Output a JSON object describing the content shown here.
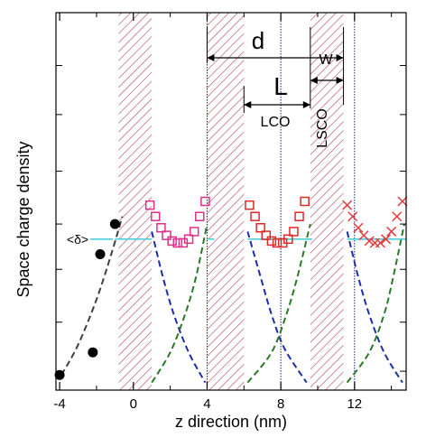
{
  "chart_data": {
    "type": "scatter",
    "title": "",
    "xlabel": "z direction (nm)",
    "ylabel": "Space charge density",
    "xlim": [
      -4.2,
      14.8
    ],
    "ylim": [
      0,
      1
    ],
    "xticks": [
      -4,
      0,
      4,
      8,
      12
    ],
    "x_minor_ticks": [
      -2,
      2,
      6,
      10,
      14
    ],
    "y_minor_ticks": [
      0.05,
      0.18,
      0.32,
      0.44,
      0.58,
      0.73,
      0.86,
      1.0
    ],
    "y_tick_labels_shown": false,
    "hatched_regions": [
      [
        -0.8,
        1.0
      ],
      [
        4.0,
        6.0
      ],
      [
        9.6,
        11.4
      ]
    ],
    "hatch_color": "#b5506a",
    "vertical_dotted_lines": [
      4.0,
      8.0,
      12.0
    ],
    "dotted_line_color": "#1a1a8c",
    "delta_level": 0.4,
    "series": [
      {
        "name": "",
        "marker": "filled-circle",
        "color": "#000000",
        "x": [
          -4.0,
          -2.2,
          -1.8,
          -1.0
        ],
        "y": [
          0.04,
          0.1,
          0.36,
          0.44
        ]
      },
      {
        "name": "",
        "marker": "open-square",
        "color": "#e0308a",
        "x": [
          0.9,
          1.2,
          1.5,
          1.8,
          2.1,
          2.4,
          2.7,
          3.0,
          3.3,
          3.6,
          3.9
        ],
        "y": [
          0.49,
          0.46,
          0.43,
          0.41,
          0.395,
          0.39,
          0.39,
          0.4,
          0.42,
          0.46,
          0.5
        ]
      },
      {
        "name": "",
        "marker": "open-square",
        "color": "#e02828",
        "x": [
          6.3,
          6.6,
          6.9,
          7.2,
          7.5,
          7.8,
          8.1,
          8.4,
          8.7,
          9.0,
          9.3
        ],
        "y": [
          0.49,
          0.46,
          0.43,
          0.41,
          0.395,
          0.39,
          0.39,
          0.4,
          0.42,
          0.46,
          0.5
        ]
      },
      {
        "name": "",
        "marker": "cross",
        "color": "#e03c3c",
        "x": [
          11.6,
          11.9,
          12.2,
          12.5,
          12.8,
          13.1,
          13.4,
          13.7,
          14.0,
          14.3,
          14.6
        ],
        "y": [
          0.49,
          0.46,
          0.43,
          0.41,
          0.395,
          0.39,
          0.39,
          0.4,
          0.42,
          0.46,
          0.5
        ]
      }
    ],
    "curves": [
      {
        "style": "dashed",
        "color": "#404040",
        "x": [
          -3.9,
          -3.0,
          -2.0,
          -1.2,
          -0.6
        ],
        "y": [
          0.04,
          0.12,
          0.24,
          0.36,
          0.46
        ]
      },
      {
        "style": "dashed",
        "color": "#1e2ea8",
        "x": [
          1.0,
          1.6,
          2.2,
          3.0,
          3.9
        ],
        "y": [
          0.42,
          0.3,
          0.2,
          0.1,
          0.02
        ]
      },
      {
        "style": "dashed",
        "color": "#2a7a2a",
        "x": [
          1.0,
          2.0,
          2.8,
          3.4,
          4.0
        ],
        "y": [
          0.02,
          0.1,
          0.2,
          0.3,
          0.44
        ]
      },
      {
        "style": "dashed",
        "color": "#1e2ea8",
        "x": [
          6.2,
          6.9,
          7.5,
          8.2,
          9.4
        ],
        "y": [
          0.42,
          0.3,
          0.2,
          0.11,
          0.02
        ]
      },
      {
        "style": "dashed",
        "color": "#2a7a2a",
        "x": [
          6.2,
          7.5,
          8.3,
          8.9,
          9.6
        ],
        "y": [
          0.02,
          0.1,
          0.2,
          0.3,
          0.44
        ]
      },
      {
        "style": "dashed",
        "color": "#1e2ea8",
        "x": [
          11.6,
          12.2,
          12.8,
          13.6,
          14.6
        ],
        "y": [
          0.42,
          0.3,
          0.2,
          0.1,
          0.02
        ]
      },
      {
        "style": "dashed",
        "color": "#2a7a2a",
        "x": [
          11.6,
          12.8,
          13.6,
          14.1,
          14.7
        ],
        "y": [
          0.02,
          0.1,
          0.2,
          0.3,
          0.44
        ]
      }
    ],
    "annotations": {
      "delta_label": "<δ>",
      "d_label": "d",
      "L_label": "L",
      "W_label": "W",
      "LCO_label": "LCO",
      "LSCO_label": "LSCO",
      "d_span": [
        4.0,
        11.4
      ],
      "L_span": [
        6.0,
        9.6
      ],
      "W_span": [
        9.6,
        11.4
      ]
    }
  }
}
